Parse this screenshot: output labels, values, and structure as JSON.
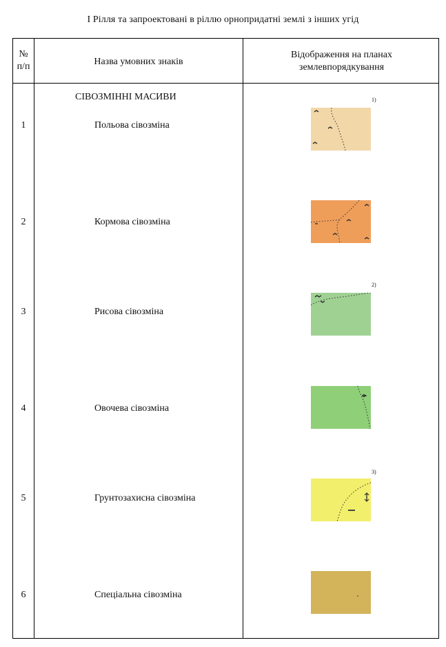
{
  "title": "I  Рілля та запроектовані в ріллю орнопридатні землі з інших угід",
  "table": {
    "headers": {
      "num_line1": "№",
      "num_line2": "п/п",
      "name": "Назва умовних знаків",
      "display_line1": "Відображення на планах",
      "display_line2": "землевпорядкування"
    },
    "group_title": "СІВОЗМІННІ МАСИВИ",
    "rows": [
      {
        "num": "1",
        "name": "Польова сівозміна",
        "color": "#f2d7a8",
        "note": "1)"
      },
      {
        "num": "2",
        "name": "Кормова сівозміна",
        "color": "#ef9e5a",
        "note": ""
      },
      {
        "num": "3",
        "name": "Рисова сівозміна",
        "color": "#9fd193",
        "note": "2)"
      },
      {
        "num": "4",
        "name": "Овочева сівозміна",
        "color": "#8ecf78",
        "note": ""
      },
      {
        "num": "5",
        "name": "Грунтозахисна сівозміна",
        "color": "#f2ef6c",
        "note": "3)"
      },
      {
        "num": "6",
        "name": "Спеціальна сівозміна",
        "color": "#d7b85e",
        "note": ""
      }
    ]
  }
}
